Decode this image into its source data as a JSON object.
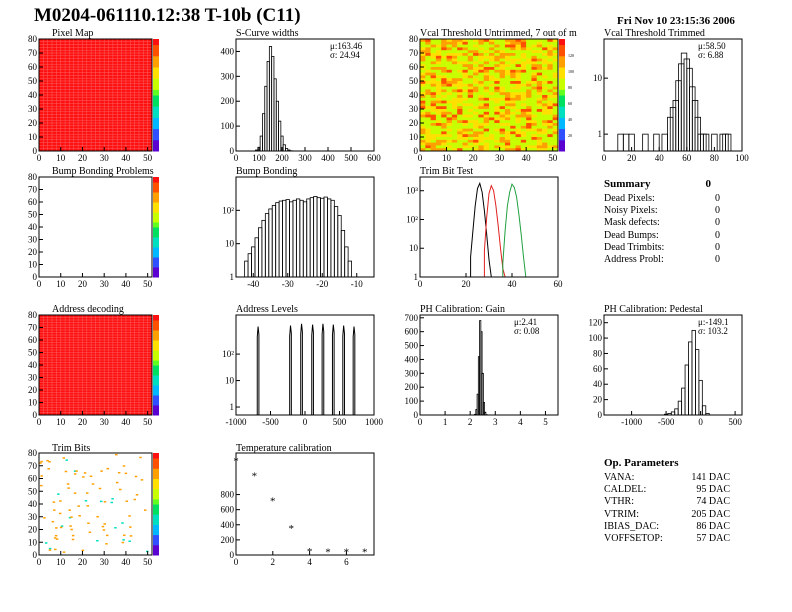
{
  "header": {
    "title": "M0204-061110.12:38 T-10b (C11)",
    "datetime": "Fri Nov 10 23:15:36 2006"
  },
  "colors": {
    "palette": [
      "#5a00d0",
      "#3050ff",
      "#00b8ff",
      "#00e0c0",
      "#00e060",
      "#60ff20",
      "#c8ff00",
      "#ffe000",
      "#ffa000",
      "#ff5000",
      "#ff1010"
    ],
    "trim_red": "#e02020",
    "trim_green": "#20a040"
  },
  "summary": {
    "title": "Summary",
    "total": "0",
    "items": [
      {
        "label": "Dead Pixels:",
        "value": "0"
      },
      {
        "label": "Noisy Pixels:",
        "value": "0"
      },
      {
        "label": "Mask defects:",
        "value": "0"
      },
      {
        "label": "Dead Bumps:",
        "value": "0"
      },
      {
        "label": "Dead Trimbits:",
        "value": "0"
      },
      {
        "label": "Address Probl:",
        "value": "0"
      }
    ]
  },
  "op_params": {
    "title": "Op. Parameters",
    "items": [
      {
        "label": "VANA:",
        "value": "141 DAC"
      },
      {
        "label": "CALDEL:",
        "value": "95 DAC"
      },
      {
        "label": "VTHR:",
        "value": "74 DAC"
      },
      {
        "label": "VTRIM:",
        "value": "205 DAC"
      },
      {
        "label": "IBIAS_DAC:",
        "value": "86 DAC"
      },
      {
        "label": "VOFFSETOP:",
        "value": "57 DAC"
      }
    ]
  },
  "chart_data": [
    {
      "id": "pixel_map",
      "type": "heatmap",
      "title": "Pixel Map",
      "xlim": [
        0,
        52
      ],
      "ylim": [
        0,
        80
      ],
      "xticks": [
        "0",
        "10",
        "20",
        "30",
        "40",
        "50"
      ],
      "yticks": [
        "0",
        "10",
        "20",
        "30",
        "40",
        "50",
        "60",
        "70",
        "80"
      ],
      "fill": "uniform",
      "value_level": 1.0
    },
    {
      "id": "scurve",
      "type": "bar",
      "title": "S-Curve widths",
      "xlim": [
        0,
        600
      ],
      "ylim": [
        0,
        450
      ],
      "xticks": [
        "0",
        "100",
        "200",
        "300",
        "400",
        "500",
        "600"
      ],
      "yticks": [
        "0",
        "100",
        "200",
        "300",
        "400"
      ],
      "stats": {
        "mean": "μ:163.46",
        "sigma": "σ: 24.94"
      },
      "x": [
        90,
        100,
        110,
        120,
        130,
        140,
        150,
        160,
        170,
        180,
        190,
        200,
        210,
        220,
        230,
        240
      ],
      "values": [
        4,
        15,
        60,
        150,
        260,
        360,
        420,
        380,
        290,
        200,
        120,
        60,
        25,
        10,
        4,
        1
      ]
    },
    {
      "id": "vcal_untrimmed",
      "type": "heatmap",
      "title": "Vcal Threshold Untrimmed, 7 out of m",
      "xlim": [
        0,
        52
      ],
      "ylim": [
        0,
        80
      ],
      "xticks": [
        "0",
        "10",
        "20",
        "30",
        "40",
        "50"
      ],
      "yticks": [
        "0",
        "10",
        "20",
        "30",
        "40",
        "50",
        "60",
        "70",
        "80"
      ],
      "fill": "mostly yellow-orange with noise",
      "color_scale": [
        "20",
        "40",
        "60",
        "80",
        "100",
        "120"
      ]
    },
    {
      "id": "vcal_trimmed",
      "type": "bar",
      "title": "Vcal Threshold Trimmed",
      "log_y": true,
      "xlim": [
        0,
        100
      ],
      "ylim": [
        0.5,
        50
      ],
      "xticks": [
        "0",
        "20",
        "40",
        "60",
        "80",
        "100"
      ],
      "yticks": [
        "1",
        "10"
      ],
      "stats": {
        "mean": "μ:58.50",
        "sigma": "σ: 6.88"
      },
      "x": [
        12,
        16,
        20,
        30,
        38,
        44,
        48,
        50,
        52,
        54,
        56,
        58,
        60,
        62,
        64,
        66,
        68,
        70,
        72,
        74,
        80,
        86,
        88,
        90
      ],
      "values": [
        1,
        1,
        1,
        1,
        1,
        1,
        2,
        3,
        4,
        9,
        18,
        28,
        22,
        15,
        7,
        4,
        2,
        1,
        1,
        1,
        1,
        1,
        1,
        1
      ]
    },
    {
      "id": "bump_problems",
      "type": "heatmap",
      "title": "Bump Bonding Problems",
      "xlim": [
        0,
        52
      ],
      "ylim": [
        0,
        80
      ],
      "xticks": [
        "0",
        "10",
        "20",
        "30",
        "40",
        "50"
      ],
      "yticks": [
        "0",
        "10",
        "20",
        "30",
        "40",
        "50",
        "60",
        "70",
        "80"
      ],
      "fill": "empty"
    },
    {
      "id": "bump_bonding",
      "type": "bar",
      "title": "Bump Bonding",
      "log_y": true,
      "xlim": [
        -45,
        -5
      ],
      "ylim": [
        1,
        1000
      ],
      "xticks": [
        "-40",
        "-30",
        "-20",
        "-10"
      ],
      "yticks": [
        "1",
        "10",
        "10²"
      ],
      "x": [
        -42,
        -41,
        -40,
        -39,
        -38,
        -37,
        -36,
        -35,
        -34,
        -33,
        -32,
        -31,
        -30,
        -29,
        -28,
        -27,
        -26,
        -25,
        -24,
        -23,
        -22,
        -21,
        -20,
        -19,
        -18,
        -17,
        -16,
        -15,
        -14,
        -13,
        -12
      ],
      "values": [
        3,
        5,
        8,
        15,
        30,
        50,
        80,
        110,
        140,
        170,
        190,
        200,
        210,
        180,
        200,
        220,
        200,
        180,
        220,
        240,
        260,
        240,
        230,
        250,
        220,
        200,
        130,
        70,
        25,
        8,
        3
      ]
    },
    {
      "id": "trim_bit_test",
      "type": "line",
      "title": "Trim Bit Test",
      "log_y": true,
      "xlim": [
        0,
        60
      ],
      "ylim": [
        1,
        3000
      ],
      "xticks": [
        "0",
        "20",
        "40",
        "60"
      ],
      "yticks": [
        "1",
        "10",
        "10²",
        "10³"
      ],
      "series": [
        {
          "color": "#000000",
          "x": [
            22,
            23,
            24,
            25,
            26,
            27,
            28,
            29,
            30,
            31
          ],
          "values": [
            5,
            40,
            300,
            1200,
            1800,
            900,
            200,
            30,
            4,
            1
          ]
        },
        {
          "color": "#e02020",
          "x": [
            28,
            29,
            30,
            31,
            32,
            33,
            34,
            35,
            36,
            37
          ],
          "values": [
            8,
            120,
            800,
            1500,
            1000,
            300,
            60,
            10,
            2,
            1
          ]
        },
        {
          "color": "#20a040",
          "x": [
            36,
            37,
            38,
            39,
            40,
            41,
            42,
            43,
            44,
            45,
            46
          ],
          "values": [
            3,
            40,
            300,
            900,
            1700,
            1300,
            600,
            150,
            30,
            5,
            1
          ]
        }
      ]
    },
    {
      "id": "address_decoding",
      "type": "heatmap",
      "title": "Address decoding",
      "xlim": [
        0,
        52
      ],
      "ylim": [
        0,
        80
      ],
      "xticks": [
        "0",
        "10",
        "20",
        "30",
        "40",
        "50"
      ],
      "yticks": [
        "0",
        "10",
        "20",
        "30",
        "40",
        "50",
        "60",
        "70",
        "80"
      ],
      "fill": "uniform",
      "value_level": 1.0
    },
    {
      "id": "address_levels",
      "type": "bar",
      "title": "Address Levels",
      "log_y": true,
      "xlim": [
        -1000,
        1000
      ],
      "ylim": [
        0.5,
        3000
      ],
      "xticks": [
        "-1000",
        "-500",
        "0",
        "500",
        "1000"
      ],
      "yticks": [
        "1",
        "10",
        "10²"
      ],
      "peaks": [
        -680,
        -210,
        -50,
        110,
        260,
        410,
        560,
        710
      ],
      "peak_values": [
        1100,
        1200,
        1400,
        1300,
        1400,
        1300,
        1200,
        1100
      ]
    },
    {
      "id": "ph_gain",
      "type": "bar",
      "title": "PH Calibration: Gain",
      "xlim": [
        0,
        5.5
      ],
      "ylim": [
        0,
        720
      ],
      "xticks": [
        "0",
        "1",
        "2",
        "3",
        "4",
        "5"
      ],
      "yticks": [
        "0",
        "100",
        "200",
        "300",
        "400",
        "500",
        "600",
        "700"
      ],
      "stats": {
        "mean": "μ:2.41",
        "sigma": "σ: 0.08"
      },
      "x": [
        2.2,
        2.25,
        2.3,
        2.35,
        2.4,
        2.45,
        2.5,
        2.55,
        2.6,
        2.65
      ],
      "values": [
        5,
        40,
        150,
        420,
        680,
        600,
        300,
        90,
        20,
        3
      ]
    },
    {
      "id": "ph_pedestal",
      "type": "bar",
      "title": "PH Calibration: Pedestal",
      "xlim": [
        -1400,
        600
      ],
      "ylim": [
        0,
        130
      ],
      "xticks": [
        "-1000",
        "-500",
        "0",
        "500"
      ],
      "yticks": [
        "0",
        "20",
        "40",
        "60",
        "80",
        "100",
        "120"
      ],
      "stats": {
        "mean": "μ:-149.1",
        "sigma": "σ: 103.2"
      },
      "x": [
        -500,
        -450,
        -400,
        -350,
        -300,
        -250,
        -200,
        -150,
        -100,
        -50,
        0,
        50,
        100
      ],
      "values": [
        1,
        2,
        4,
        8,
        18,
        35,
        65,
        95,
        110,
        85,
        45,
        12,
        2
      ]
    },
    {
      "id": "trim_bits",
      "type": "heatmap",
      "title": "Trim Bits",
      "xlim": [
        0,
        52
      ],
      "ylim": [
        0,
        80
      ],
      "xticks": [
        "0",
        "10",
        "20",
        "30",
        "40",
        "50"
      ],
      "yticks": [
        "0",
        "10",
        "20",
        "30",
        "40",
        "50",
        "60",
        "70",
        "80"
      ],
      "fill": "sparse orange dots"
    },
    {
      "id": "temp_calibration",
      "type": "scatter",
      "title": "Temperature calibration",
      "xlim": [
        0,
        7.5
      ],
      "ylim": [
        0,
        1350
      ],
      "xticks": [
        "0",
        "2",
        "4",
        "6"
      ],
      "yticks": [
        "0",
        "200",
        "400",
        "600",
        "800"
      ],
      "x": [
        0,
        1,
        2,
        3,
        4,
        5,
        6,
        7
      ],
      "values": [
        1250,
        1050,
        720,
        360,
        50,
        45,
        45,
        45
      ]
    }
  ]
}
